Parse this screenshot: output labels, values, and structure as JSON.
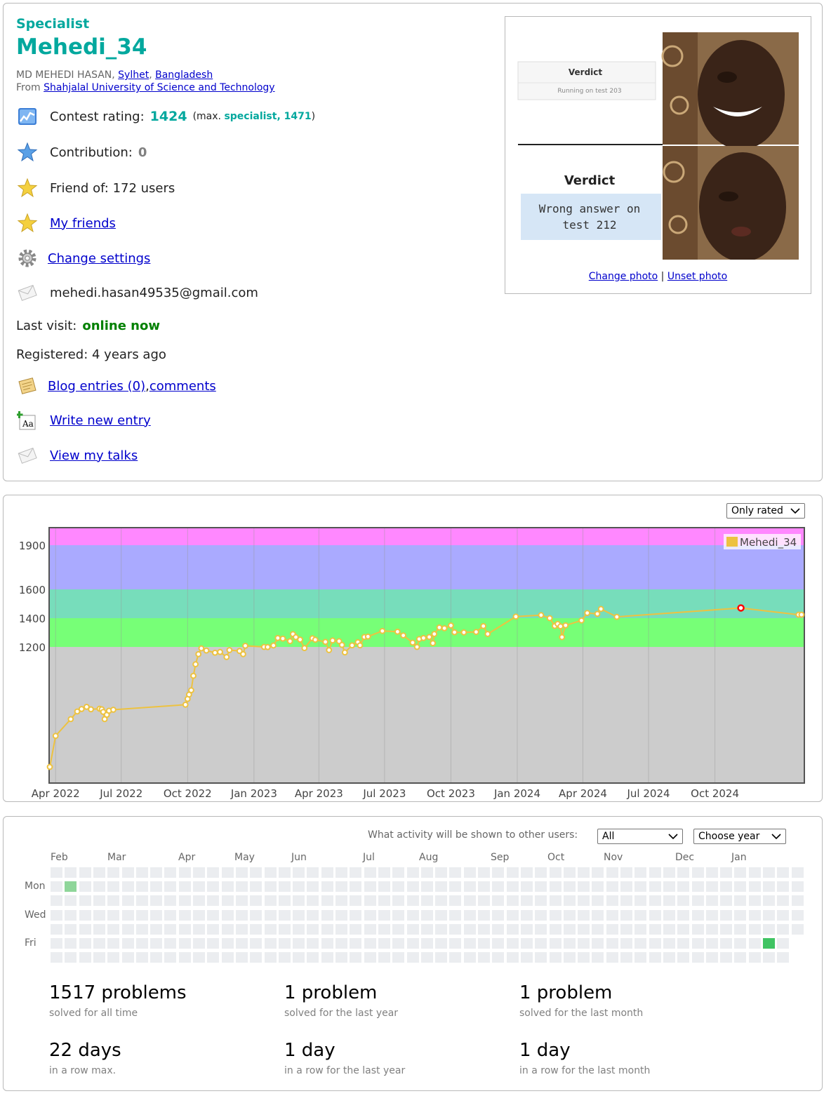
{
  "profile": {
    "rank": "Specialist",
    "handle": "Mehedi_34",
    "name_prefix": "MD MEHEDI HASAN, ",
    "city": "Sylhet",
    "country": "Bangladesh",
    "from_label": "From ",
    "organization": "Shahjalal University of Science and Technology",
    "rating_label": "Contest rating:",
    "rating": "1424",
    "max_open": "(max. ",
    "max_rank": "specialist, ",
    "max_rating": "1471",
    "max_close": ")",
    "contribution_label": "Contribution:",
    "contribution": "0",
    "friend_of": "Friend of: 172 users",
    "my_friends": "My friends",
    "change_settings": "Change settings",
    "email": "mehedi.hasan49535@gmail.com",
    "last_visit_label": "Last visit:",
    "last_visit": "online now",
    "registered": "Registered: 4 years ago",
    "blog_entries": "Blog entries (0)",
    "comma": ", ",
    "comments": "comments",
    "write_entry": "Write new entry",
    "view_talks": "View my talks",
    "change_photo": "Change photo",
    "separator": " | ",
    "unset_photo": "Unset photo",
    "meme": {
      "verdict1": "Verdict",
      "running": "Running on test 203",
      "verdict2": "Verdict",
      "wrong1": "Wrong answer on",
      "wrong2": "test 212"
    }
  },
  "rating_graph": {
    "filter": "Only rated"
  },
  "chart_data": {
    "type": "line",
    "series": [
      {
        "name": "Mehedi_34",
        "color": "#edc240",
        "points": [
          [
            "2022-03-24",
            369
          ],
          [
            "2022-04-01",
            584
          ],
          [
            "2022-04-22",
            700
          ],
          [
            "2022-05-01",
            753
          ],
          [
            "2022-05-07",
            770
          ],
          [
            "2022-05-14",
            785
          ],
          [
            "2022-05-20",
            768
          ],
          [
            "2022-06-01",
            772
          ],
          [
            "2022-06-04",
            768
          ],
          [
            "2022-06-06",
            750
          ],
          [
            "2022-06-08",
            700
          ],
          [
            "2022-06-11",
            730
          ],
          [
            "2022-06-14",
            758
          ],
          [
            "2022-06-20",
            765
          ],
          [
            "2022-09-28",
            800
          ],
          [
            "2022-10-01",
            840
          ],
          [
            "2022-10-03",
            870
          ],
          [
            "2022-10-06",
            900
          ],
          [
            "2022-10-09",
            1000
          ],
          [
            "2022-10-12",
            1080
          ],
          [
            "2022-10-16",
            1150
          ],
          [
            "2022-10-20",
            1190
          ],
          [
            "2022-10-27",
            1175
          ],
          [
            "2022-11-08",
            1160
          ],
          [
            "2022-11-15",
            1165
          ],
          [
            "2022-11-24",
            1130
          ],
          [
            "2022-11-28",
            1178
          ],
          [
            "2022-12-12",
            1172
          ],
          [
            "2022-12-17",
            1150
          ],
          [
            "2022-12-20",
            1208
          ],
          [
            "2023-01-15",
            1200
          ],
          [
            "2023-01-20",
            1199
          ],
          [
            "2023-01-28",
            1210
          ],
          [
            "2023-02-03",
            1262
          ],
          [
            "2023-02-10",
            1258
          ],
          [
            "2023-02-20",
            1240
          ],
          [
            "2023-02-24",
            1289
          ],
          [
            "2023-02-28",
            1268
          ],
          [
            "2023-03-06",
            1251
          ],
          [
            "2023-03-12",
            1192
          ],
          [
            "2023-03-23",
            1260
          ],
          [
            "2023-03-27",
            1250
          ],
          [
            "2023-04-10",
            1235
          ],
          [
            "2023-04-15",
            1178
          ],
          [
            "2023-04-20",
            1245
          ],
          [
            "2023-04-29",
            1240
          ],
          [
            "2023-05-03",
            1214
          ],
          [
            "2023-05-07",
            1162
          ],
          [
            "2023-05-17",
            1211
          ],
          [
            "2023-05-25",
            1233
          ],
          [
            "2023-05-28",
            1211
          ],
          [
            "2023-06-03",
            1269
          ],
          [
            "2023-06-08",
            1272
          ],
          [
            "2023-06-28",
            1311
          ],
          [
            "2023-07-19",
            1306
          ],
          [
            "2023-07-27",
            1280
          ],
          [
            "2023-08-09",
            1230
          ],
          [
            "2023-08-15",
            1200
          ],
          [
            "2023-08-18",
            1255
          ],
          [
            "2023-08-24",
            1262
          ],
          [
            "2023-09-01",
            1269
          ],
          [
            "2023-09-06",
            1226
          ],
          [
            "2023-09-08",
            1290
          ],
          [
            "2023-09-15",
            1335
          ],
          [
            "2023-09-22",
            1330
          ],
          [
            "2023-10-01",
            1349
          ],
          [
            "2023-10-06",
            1302
          ],
          [
            "2023-10-19",
            1301
          ],
          [
            "2023-11-05",
            1304
          ],
          [
            "2023-11-15",
            1345
          ],
          [
            "2023-11-21",
            1290
          ],
          [
            "2023-12-30",
            1411
          ],
          [
            "2024-02-03",
            1421
          ],
          [
            "2024-02-15",
            1400
          ],
          [
            "2024-02-22",
            1346
          ],
          [
            "2024-02-26",
            1360
          ],
          [
            "2024-03-01",
            1343
          ],
          [
            "2024-03-03",
            1268
          ],
          [
            "2024-03-08",
            1350
          ],
          [
            "2024-03-30",
            1384
          ],
          [
            "2024-04-07",
            1436
          ],
          [
            "2024-04-21",
            1430
          ],
          [
            "2024-04-26",
            1464
          ],
          [
            "2024-05-18",
            1409
          ],
          [
            "2024-11-06",
            1471
          ],
          [
            "2025-01-25",
            1424
          ],
          [
            "2025-01-29",
            1424
          ]
        ]
      }
    ],
    "max_point": [
      "2024-11-06",
      1471
    ],
    "y_ticks": [
      1200,
      1400,
      1600,
      1900
    ],
    "x_ticks": [
      "Apr 2022",
      "Jul 2022",
      "Oct 2022",
      "Jan 2023",
      "Apr 2023",
      "Jul 2023",
      "Oct 2023",
      "Jan 2024",
      "Apr 2024",
      "Jul 2024",
      "Oct 2024"
    ],
    "bands": [
      {
        "from": 0,
        "to": 1200,
        "color": "#cccccc"
      },
      {
        "from": 1200,
        "to": 1400,
        "color": "#77ff77"
      },
      {
        "from": 1400,
        "to": 1600,
        "color": "#77ddbb"
      },
      {
        "from": 1600,
        "to": 1900,
        "color": "#aaaaff"
      },
      {
        "from": 1900,
        "to": 2100,
        "color": "#ff88ff"
      }
    ],
    "legend": "top-right",
    "grid": true
  },
  "activity": {
    "visibility_label": "What activity will be shown to other users:",
    "visibility_value": "All",
    "year_value": "Choose year",
    "months": [
      "Feb",
      "Mar",
      "Apr",
      "May",
      "Jun",
      "Jul",
      "Aug",
      "Sep",
      "Oct",
      "Nov",
      "Dec",
      "Jan"
    ],
    "days": [
      "Mon",
      "Wed",
      "Fri"
    ],
    "active_cells": [
      {
        "week": 1,
        "day": 1,
        "level": 1
      },
      {
        "week": 50,
        "day": 5,
        "level": 2
      }
    ],
    "stats": [
      {
        "value": "1517 problems",
        "caption": "solved for all time"
      },
      {
        "value": "1 problem",
        "caption": "solved for the last year"
      },
      {
        "value": "1 problem",
        "caption": "solved for the last month"
      },
      {
        "value": "22 days",
        "caption": "in a row max."
      },
      {
        "value": "1 day",
        "caption": "in a row for the last year"
      },
      {
        "value": "1 day",
        "caption": "in a row for the last month"
      }
    ]
  }
}
